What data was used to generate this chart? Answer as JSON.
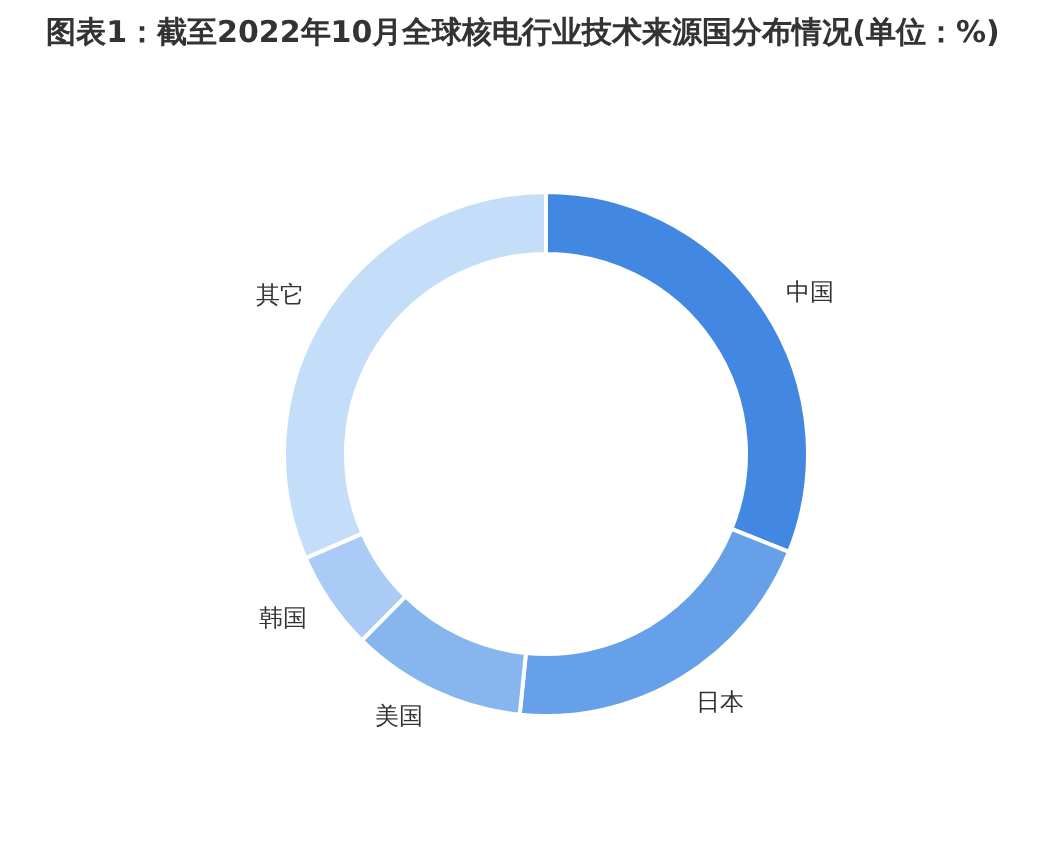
{
  "chart_data": {
    "type": "donut",
    "title": "图表1：截至2022年10月全球核电行业技术来源国分布情况(单位：%)",
    "categories": [
      "中国",
      "日本",
      "美国",
      "韩国",
      "其它"
    ],
    "values": [
      31.1,
      20.5,
      10.8,
      6.1,
      31.5
    ],
    "colors": [
      "#4287e2",
      "#65a0e8",
      "#87b6ef",
      "#a9cbf5",
      "#c4ddf9"
    ],
    "legend": false
  }
}
